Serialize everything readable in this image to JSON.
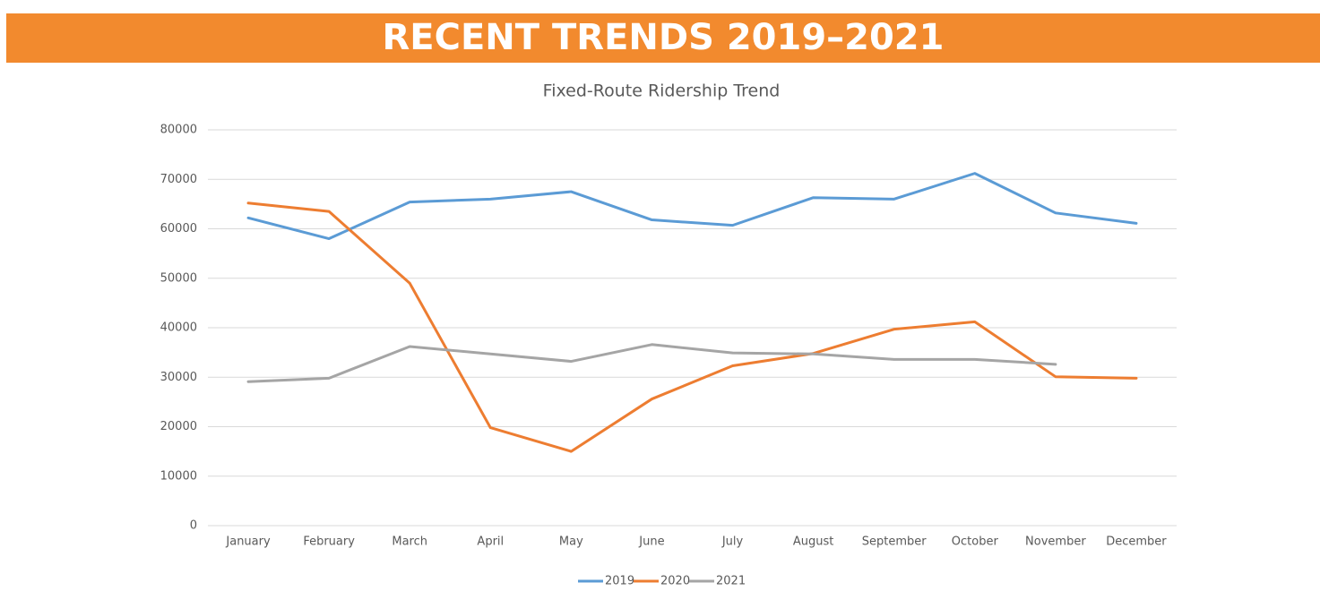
{
  "header": {
    "title": "RECENT TRENDS 2019–2021"
  },
  "chart_data": {
    "type": "line",
    "title": "Fixed-Route Ridership Trend",
    "categories": [
      "January",
      "February",
      "March",
      "April",
      "May",
      "June",
      "July",
      "August",
      "September",
      "October",
      "November",
      "December"
    ],
    "series": [
      {
        "name": "2019",
        "color": "#5b9bd5",
        "values": [
          62200,
          58000,
          65400,
          66000,
          67500,
          61800,
          60700,
          66300,
          66000,
          71200,
          63200,
          61100
        ]
      },
      {
        "name": "2020",
        "color": "#ed7d31",
        "values": [
          65200,
          63500,
          49000,
          19800,
          15000,
          25600,
          32300,
          34800,
          39700,
          41200,
          30100,
          29800
        ]
      },
      {
        "name": "2021",
        "color": "#a5a5a5",
        "values": [
          29100,
          29800,
          36200,
          34700,
          33200,
          36600,
          34900,
          34700,
          33600,
          33600,
          32600,
          null
        ]
      }
    ],
    "ylim": [
      0,
      80000
    ],
    "yticks": [
      0,
      10000,
      20000,
      30000,
      40000,
      50000,
      60000,
      70000,
      80000
    ],
    "grid": true,
    "legend": "bottom"
  }
}
